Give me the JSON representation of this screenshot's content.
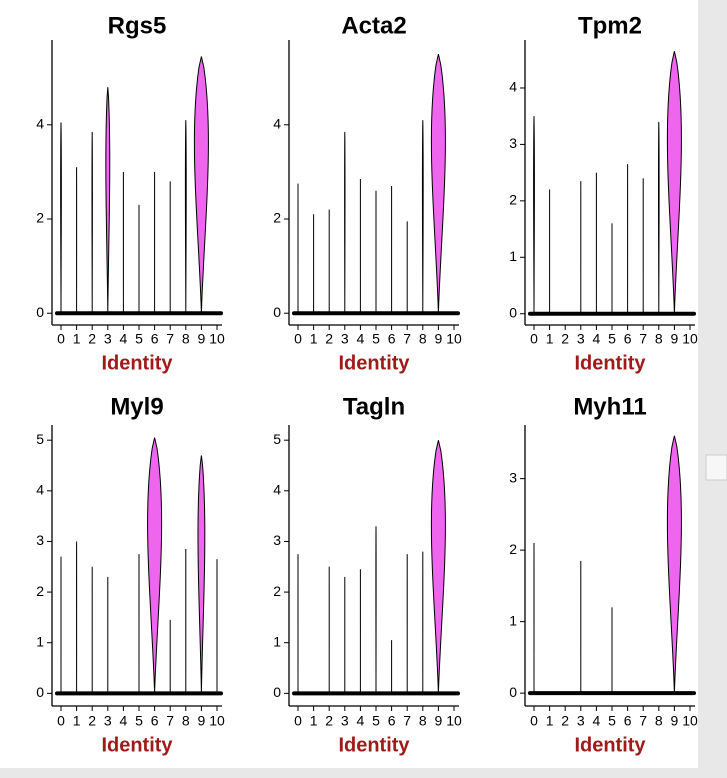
{
  "chart_data": [
    {
      "type": "violin",
      "title": "Rgs5",
      "xlabel": "Identity",
      "color": "#ee66ee",
      "categories": [
        "0",
        "1",
        "2",
        "3",
        "4",
        "5",
        "6",
        "7",
        "8",
        "9",
        "10"
      ],
      "values": [
        4.05,
        3.1,
        3.85,
        4.8,
        3.0,
        2.3,
        3.0,
        2.8,
        4.1,
        5.45,
        0
      ],
      "ylim": [
        -0.25,
        5.8
      ],
      "yticks": [
        0,
        2,
        4
      ]
    },
    {
      "type": "violin",
      "title": "Acta2",
      "xlabel": "Identity",
      "color": "#ee66ee",
      "categories": [
        "0",
        "1",
        "2",
        "3",
        "4",
        "5",
        "6",
        "7",
        "8",
        "9",
        "10"
      ],
      "values": [
        2.75,
        2.1,
        2.2,
        3.85,
        2.85,
        2.6,
        2.7,
        1.95,
        4.1,
        5.5,
        0
      ],
      "ylim": [
        -0.25,
        5.8
      ],
      "yticks": [
        0,
        2,
        4
      ]
    },
    {
      "type": "violin",
      "title": "Tpm2",
      "xlabel": "Identity",
      "color": "#ee66ee",
      "categories": [
        "0",
        "1",
        "2",
        "3",
        "4",
        "5",
        "6",
        "7",
        "8",
        "9",
        "10"
      ],
      "values": [
        3.5,
        2.2,
        0,
        2.35,
        2.5,
        1.6,
        2.65,
        2.4,
        3.4,
        4.65,
        0
      ],
      "ylim": [
        -0.2,
        4.85
      ],
      "yticks": [
        0,
        1,
        2,
        3,
        4
      ]
    },
    {
      "type": "violin",
      "title": "Myl9",
      "xlabel": "Identity",
      "color": "#ee66ee",
      "categories": [
        "0",
        "1",
        "2",
        "3",
        "4",
        "5",
        "6",
        "7",
        "8",
        "9",
        "10"
      ],
      "values": [
        2.7,
        3.0,
        2.5,
        2.3,
        0,
        2.75,
        5.05,
        1.45,
        2.85,
        4.7,
        2.65
      ],
      "ylim": [
        -0.25,
        5.3
      ],
      "yticks": [
        0,
        1,
        2,
        3,
        4,
        5
      ]
    },
    {
      "type": "violin",
      "title": "Tagln",
      "xlabel": "Identity",
      "color": "#ee66ee",
      "categories": [
        "0",
        "1",
        "2",
        "3",
        "4",
        "5",
        "6",
        "7",
        "8",
        "9",
        "10"
      ],
      "values": [
        2.75,
        0,
        2.5,
        2.3,
        2.45,
        3.3,
        1.05,
        2.75,
        2.8,
        5.0,
        0
      ],
      "ylim": [
        -0.25,
        5.3
      ],
      "yticks": [
        0,
        1,
        2,
        3,
        4,
        5
      ]
    },
    {
      "type": "violin",
      "title": "Myh11",
      "xlabel": "Identity",
      "color": "#ee66ee",
      "categories": [
        "0",
        "1",
        "2",
        "3",
        "4",
        "5",
        "6",
        "7",
        "8",
        "9",
        "10"
      ],
      "values": [
        2.1,
        0,
        0,
        1.85,
        0,
        1.2,
        0,
        0,
        0,
        3.6,
        0
      ],
      "ylim": [
        -0.18,
        3.75
      ],
      "yticks": [
        0,
        1,
        2,
        3
      ]
    }
  ]
}
